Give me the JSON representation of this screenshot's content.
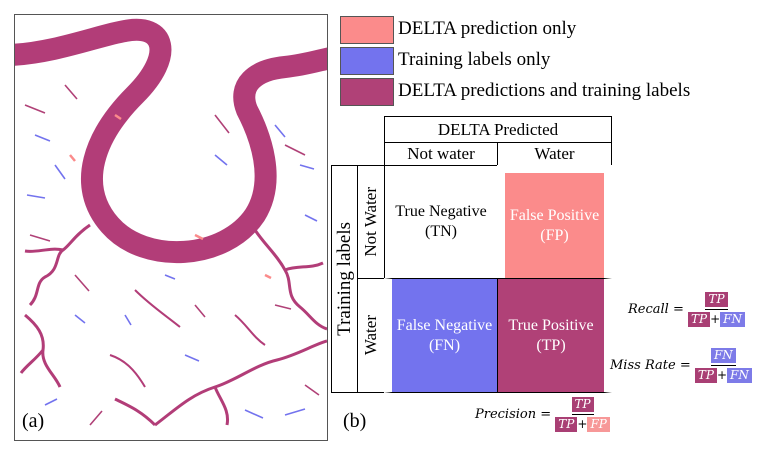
{
  "colors": {
    "delta_only": "#fb8b8b",
    "labels_only": "#7373ee",
    "both": "#b04177",
    "river": "#b23d78",
    "tp_box": "#a93f74",
    "fn_box": "#7d7be8",
    "fp_box": "#f79898"
  },
  "panels": {
    "a": "(a)",
    "b": "(b)"
  },
  "legend": [
    {
      "label": "DELTA prediction only",
      "color": "#fb8b8b"
    },
    {
      "label": "Training labels only",
      "color": "#7373ee"
    },
    {
      "label": "DELTA predictions and training labels",
      "color": "#b04177"
    }
  ],
  "matrix": {
    "top_header": "DELTA Predicted",
    "col_headers": [
      "Not water",
      "Water"
    ],
    "side_header": "Training labels",
    "row_headers": [
      "Not Water",
      "Water"
    ],
    "cells": {
      "tn": "True Negative\n(TN)",
      "fp": "False Positive\n(FP)",
      "fn": "False Negative\n(FN)",
      "tp": "True Positive\n(TP)"
    }
  },
  "formulas": {
    "recall": {
      "name": "Recall =",
      "num": "TP",
      "den_a": "TP",
      "plus": "+",
      "den_b": "FN"
    },
    "miss_rate": {
      "name": "Miss Rate =",
      "num": "FN",
      "den_a": "TP",
      "plus": "+",
      "den_b": "FN"
    },
    "precision": {
      "name": "Precision =",
      "num": "TP",
      "den_a": "TP",
      "plus": "+",
      "den_b": "FP"
    }
  }
}
